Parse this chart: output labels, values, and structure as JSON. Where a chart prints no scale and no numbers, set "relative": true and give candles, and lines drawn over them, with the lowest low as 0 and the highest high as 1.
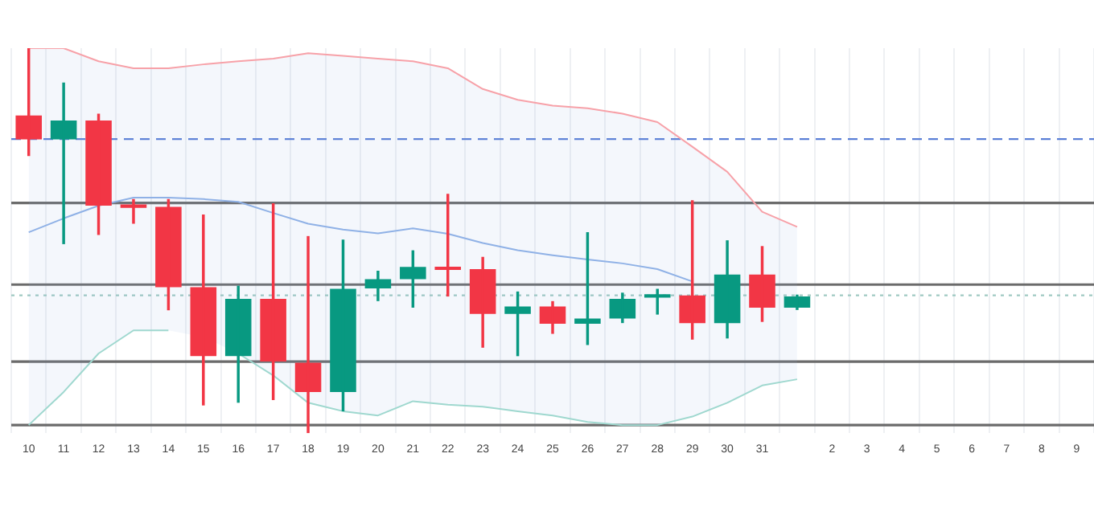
{
  "chart_data": {
    "type": "candlestick",
    "relative": true,
    "legend": false,
    "grid": "x",
    "categories": [
      "10",
      "11",
      "12",
      "13",
      "14",
      "15",
      "16",
      "17",
      "18",
      "19",
      "20",
      "21",
      "22",
      "23",
      "24",
      "25",
      "26",
      "27",
      "28",
      "29",
      "30",
      "31",
      null,
      "2",
      "3",
      "4",
      "5",
      "6",
      "7",
      "8",
      "9"
    ],
    "ohlc": [
      [
        0.825,
        1.0,
        0.72,
        0.763
      ],
      [
        0.763,
        0.911,
        0.491,
        0.812
      ],
      [
        0.812,
        0.83,
        0.515,
        0.591
      ],
      [
        0.594,
        0.608,
        0.544,
        0.585
      ],
      [
        0.588,
        0.608,
        0.319,
        0.379
      ],
      [
        0.379,
        0.568,
        0.072,
        0.2
      ],
      [
        0.2,
        0.383,
        0.079,
        0.349
      ],
      [
        0.349,
        0.597,
        0.086,
        0.186
      ],
      [
        0.183,
        0.512,
        0.0,
        0.107
      ],
      [
        0.107,
        0.503,
        0.057,
        0.375
      ],
      [
        0.376,
        0.422,
        0.343,
        0.4
      ],
      [
        0.4,
        0.475,
        0.326,
        0.432
      ],
      [
        0.432,
        0.622,
        0.355,
        0.424
      ],
      [
        0.426,
        0.458,
        0.222,
        0.31
      ],
      [
        0.31,
        0.368,
        0.2,
        0.329
      ],
      [
        0.329,
        0.343,
        0.258,
        0.284
      ],
      [
        0.284,
        0.522,
        0.229,
        0.298
      ],
      [
        0.298,
        0.365,
        0.286,
        0.349
      ],
      [
        0.352,
        0.375,
        0.308,
        0.361
      ],
      [
        0.358,
        0.605,
        0.243,
        0.286
      ],
      [
        0.286,
        0.501,
        0.246,
        0.412
      ],
      [
        0.412,
        0.486,
        0.289,
        0.326
      ],
      [
        0.326,
        0.36,
        0.32,
        0.355
      ],
      null,
      null,
      null,
      null,
      null,
      null,
      null,
      null
    ],
    "colors": [
      "#f23645",
      "#089981",
      "#f23645",
      "#f23645",
      "#f23645",
      "#f23645",
      "#089981",
      "#f23645",
      "#f23645",
      "#089981",
      "#089981",
      "#089981",
      "#f23645",
      "#f23645",
      "#089981",
      "#f23645",
      "#089981",
      "#089981",
      "#089981",
      "#f23645",
      "#089981",
      "#f23645",
      "#089981",
      null,
      null,
      null,
      null,
      null,
      null,
      null,
      null
    ],
    "series": [
      {
        "type": "line",
        "color": "#f7a1a8",
        "values": [
          1.0,
          1.0,
          0.966,
          0.948,
          0.948,
          0.958,
          0.966,
          0.973,
          0.987,
          0.98,
          0.973,
          0.966,
          0.948,
          0.894,
          0.866,
          0.851,
          0.844,
          0.83,
          0.808,
          0.744,
          0.679,
          0.575,
          0.536,
          null,
          null,
          null,
          null,
          null,
          null,
          null,
          null
        ]
      },
      {
        "type": "line",
        "color": "#8fb1e6",
        "values": [
          0.522,
          0.558,
          0.591,
          0.612,
          0.612,
          0.608,
          0.601,
          0.572,
          0.544,
          0.529,
          0.519,
          0.532,
          0.518,
          0.494,
          0.475,
          0.462,
          0.451,
          0.441,
          0.426,
          0.394,
          null,
          null,
          null,
          null,
          null,
          null,
          null,
          null,
          null,
          null,
          null
        ],
        "upper": [
          1.0,
          1.0,
          0.966,
          0.948,
          0.948,
          0.958,
          0.966,
          0.973,
          0.987,
          0.98,
          0.973,
          0.966,
          0.948,
          0.894,
          0.866,
          0.851,
          0.844,
          0.83,
          0.808,
          0.744,
          0.679,
          0.575,
          0.536,
          null,
          null,
          null,
          null,
          null,
          null,
          null,
          null
        ],
        "lower": [
          0.021,
          0.107,
          0.207,
          0.267,
          0.267,
          0.25,
          0.207,
          0.15,
          0.079,
          0.057,
          0.046,
          0.083,
          0.074,
          0.069,
          0.057,
          0.046,
          0.029,
          0.021,
          0.021,
          0.043,
          0.079,
          0.124,
          0.14,
          null,
          null,
          null,
          null,
          null,
          null,
          null,
          null
        ]
      },
      {
        "type": "line",
        "color": "#9fd8cf",
        "values": [
          0.021,
          0.107,
          0.207,
          0.267,
          0.267,
          null,
          0.207,
          0.15,
          0.079,
          0.057,
          0.046,
          0.083,
          0.074,
          0.069,
          0.057,
          0.046,
          0.029,
          0.021,
          0.021,
          0.043,
          0.079,
          0.124,
          0.14,
          null,
          null,
          null,
          null,
          null,
          null,
          null,
          null
        ]
      }
    ],
    "ref_lines": [
      {
        "axis": "y",
        "value": 0.764,
        "color": "#5b7fd6",
        "line_style": "dashed"
      },
      {
        "axis": "y",
        "value": 0.598,
        "color": "#6b6b6b",
        "line_style": "solid"
      },
      {
        "axis": "y",
        "value": 0.386,
        "color": "#6b6b6b",
        "line_style": "solid"
      },
      {
        "axis": "y",
        "value": 0.358,
        "color": "#9fc9c2",
        "line_style": "dotted"
      },
      {
        "axis": "y",
        "value": 0.186,
        "color": "#6b6b6b",
        "line_style": "solid"
      },
      {
        "axis": "y",
        "value": 0.021,
        "color": "#6b6b6b",
        "line_style": "solid"
      }
    ]
  }
}
